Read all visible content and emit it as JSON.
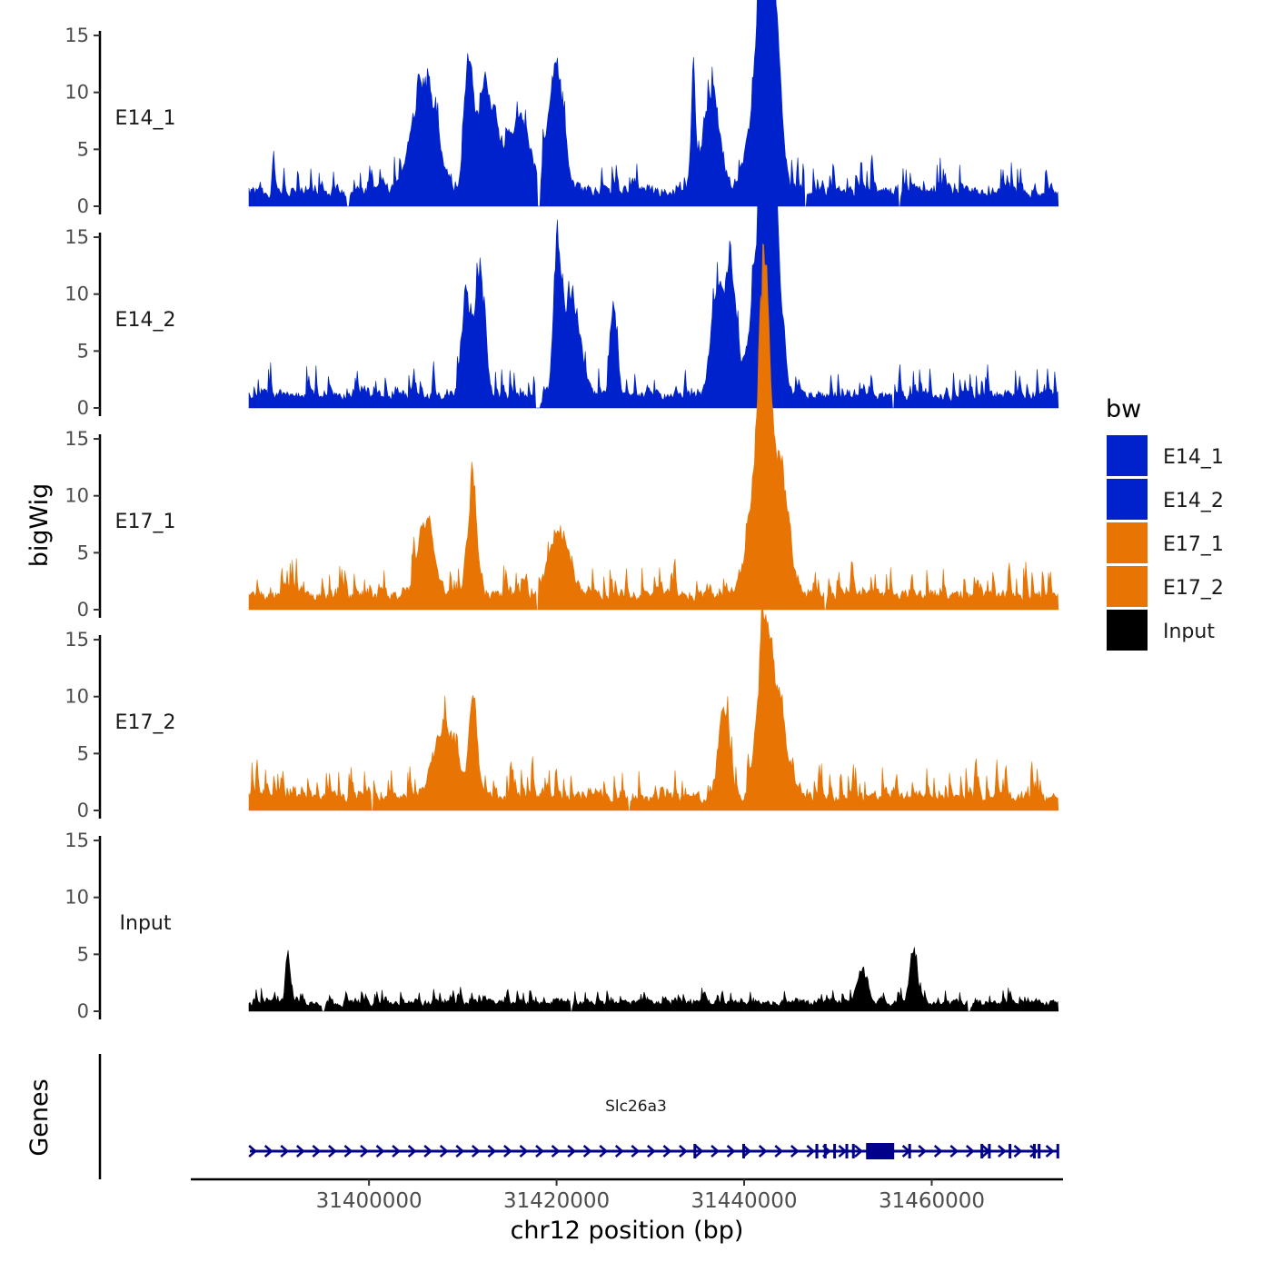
{
  "chart_data": {
    "type": "area",
    "ylabel": "bigWig",
    "xlabel": "chr12 position (bp)",
    "genes_label": "Genes",
    "xlim": [
      31381000,
      31474000
    ],
    "data_range": [
      31387200,
      31473500
    ],
    "x_ticks": [
      31400000,
      31420000,
      31440000,
      31460000
    ],
    "x_tick_labels": [
      "31400000",
      "31420000",
      "31440000",
      "31460000"
    ],
    "ylim": [
      0,
      15
    ],
    "y_ticks": [
      0,
      5,
      10,
      15
    ],
    "y_tick_labels": [
      "0",
      "5",
      "10",
      "15"
    ],
    "legend": {
      "title": "bw",
      "entries": [
        {
          "label": "E14_1",
          "color": "#0022CC"
        },
        {
          "label": "E14_2",
          "color": "#0022CC"
        },
        {
          "label": "E17_1",
          "color": "#E87404"
        },
        {
          "label": "E17_2",
          "color": "#E87404"
        },
        {
          "label": "Input",
          "color": "#000000"
        }
      ]
    },
    "series": [
      {
        "name": "E14_1",
        "color": "#0022CC",
        "baseline": 1.6,
        "noise": 1.9,
        "peaks": [
          {
            "x": 31442200,
            "y": 14.9,
            "w": 600
          },
          {
            "x": 31441900,
            "y": 9.5,
            "w": 1500
          },
          {
            "x": 31443100,
            "y": 6.8,
            "w": 900
          },
          {
            "x": 31405800,
            "y": 5.8,
            "w": 1800
          },
          {
            "x": 31410500,
            "y": 6.3,
            "w": 600
          },
          {
            "x": 31412500,
            "y": 5.5,
            "w": 1500
          },
          {
            "x": 31419800,
            "y": 6.5,
            "w": 1100
          },
          {
            "x": 31434500,
            "y": 6.8,
            "w": 300
          },
          {
            "x": 31436500,
            "y": 5.2,
            "w": 1200
          },
          {
            "x": 31416000,
            "y": 3.8,
            "w": 1500
          }
        ],
        "gaps": [
          [
            31397600,
            31397900
          ],
          [
            31418000,
            31418300
          ],
          [
            31446400,
            31446700
          ],
          [
            31456400,
            31456700
          ]
        ]
      },
      {
        "name": "E14_2",
        "color": "#0022CC",
        "baseline": 1.3,
        "noise": 1.9,
        "peaks": [
          {
            "x": 31442200,
            "y": 13.5,
            "w": 600
          },
          {
            "x": 31441900,
            "y": 8.5,
            "w": 1500
          },
          {
            "x": 31443100,
            "y": 7.5,
            "w": 900
          },
          {
            "x": 31420000,
            "y": 7.5,
            "w": 500
          },
          {
            "x": 31421500,
            "y": 5.5,
            "w": 1200
          },
          {
            "x": 31411800,
            "y": 6.0,
            "w": 700
          },
          {
            "x": 31410300,
            "y": 5.0,
            "w": 700
          },
          {
            "x": 31438500,
            "y": 6.5,
            "w": 800
          },
          {
            "x": 31437000,
            "y": 5.2,
            "w": 900
          },
          {
            "x": 31426000,
            "y": 4.8,
            "w": 500
          }
        ],
        "gaps": [
          [
            31417700,
            31418300
          ],
          [
            31455800,
            31456000
          ]
        ]
      },
      {
        "name": "E17_1",
        "color": "#E87404",
        "baseline": 1.5,
        "noise": 1.9,
        "peaks": [
          {
            "x": 31442000,
            "y": 11.2,
            "w": 700
          },
          {
            "x": 31441800,
            "y": 7.0,
            "w": 1700
          },
          {
            "x": 31443800,
            "y": 5.5,
            "w": 1200
          },
          {
            "x": 31410900,
            "y": 5.4,
            "w": 700
          },
          {
            "x": 31406000,
            "y": 4.2,
            "w": 1200
          },
          {
            "x": 31420200,
            "y": 3.5,
            "w": 1500
          }
        ],
        "gaps": [
          [
            31417800,
            31418000
          ],
          [
            31448500,
            31448700
          ]
        ]
      },
      {
        "name": "E17_2",
        "color": "#E87404",
        "baseline": 1.4,
        "noise": 1.9,
        "peaks": [
          {
            "x": 31442000,
            "y": 6.5,
            "w": 1000
          },
          {
            "x": 31443300,
            "y": 5.0,
            "w": 1500
          },
          {
            "x": 31437800,
            "y": 5.0,
            "w": 700
          },
          {
            "x": 31411000,
            "y": 5.5,
            "w": 600
          },
          {
            "x": 31408000,
            "y": 3.8,
            "w": 1600
          }
        ],
        "gaps": [
          [
            31400200,
            31400500
          ],
          [
            31427600,
            31427800
          ]
        ]
      },
      {
        "name": "Input",
        "color": "#000000",
        "baseline": 0.9,
        "noise": 0.9,
        "peaks": [
          {
            "x": 31391300,
            "y": 3.0,
            "w": 300
          },
          {
            "x": 31458000,
            "y": 2.8,
            "w": 500
          },
          {
            "x": 31452500,
            "y": 1.8,
            "w": 700
          }
        ],
        "gaps": [
          [
            31395000,
            31395300
          ],
          [
            31421500,
            31421700
          ],
          [
            31463800,
            31464100
          ]
        ]
      }
    ],
    "genes": [
      {
        "name": "Slc26a3",
        "start": 31387300,
        "end": 31473500,
        "strand": "+",
        "color": "#00008B",
        "exons": [
          [
            31434600,
            31434700
          ],
          [
            31439800,
            31439900
          ],
          [
            31447600,
            31447900
          ],
          [
            31448500,
            31448700
          ],
          [
            31449500,
            31449600
          ],
          [
            31450800,
            31450900
          ],
          [
            31451500,
            31451600
          ],
          [
            31453000,
            31456000
          ],
          [
            31457500,
            31457700
          ],
          [
            31465200,
            31465300
          ],
          [
            31466000,
            31466200
          ],
          [
            31468200,
            31468400
          ],
          [
            31470800,
            31471000
          ],
          [
            31471300,
            31471600
          ],
          [
            31473300,
            31473500
          ]
        ]
      }
    ]
  }
}
